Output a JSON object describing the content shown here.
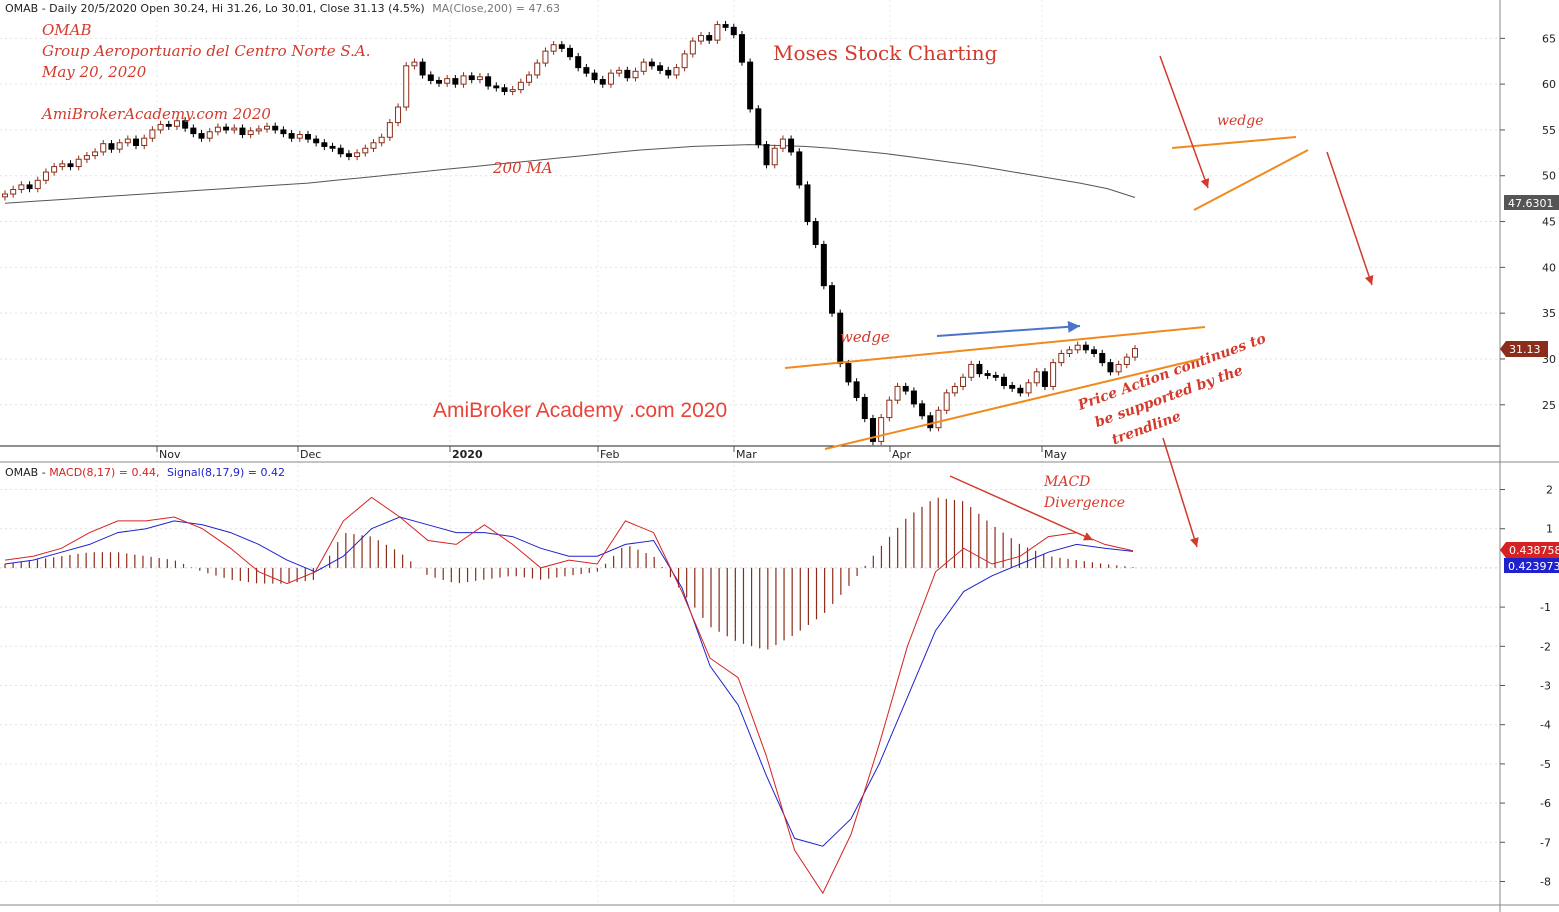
{
  "price_header": {
    "symbol": "OMAB",
    "text": "OMAB - Daily 20/5/2020 Open 30.24, Hi 31.26, Lo 30.01, Close 31.13 (4.5%)",
    "ma_text": "MA(Close,200) = 47.63"
  },
  "macd_header": {
    "prefix": "OMAB - ",
    "macd_text": "MACD(8,17) = 0.44,",
    "signal_text": "Signal(8,17,9) = 0.42"
  },
  "annotations": {
    "company_lines": [
      "OMAB",
      "Group Aeroportuario del Centro Norte S.A.",
      "May 20, 2020"
    ],
    "site_1": "AmiBrokerAcademy.com  2020",
    "ma_label": "200 MA",
    "moses": "Moses Stock Charting",
    "wedge_1": "wedge",
    "wedge_2": "wedge",
    "watermark": "AmiBroker Academy .com  2020",
    "price_action_lines": [
      "Price Action continues to",
      "be supported by the",
      "trendline"
    ],
    "macd_div_lines": [
      "MACD",
      "Divergence"
    ]
  },
  "value_labels": {
    "ma": "47.6301",
    "close": "31.13",
    "macd": "0.438758",
    "signal": "0.423973"
  },
  "colors": {
    "up_candle": "#8b2d1a",
    "down_candle": "#000000",
    "ma_line": "#555555",
    "macd_line": "#d62222",
    "signal_line": "#1f22cc",
    "histogram": "#8b2d1a",
    "annotation": "#d33a2c",
    "trend_orange": "#f08a1c",
    "blue_arrow": "#4a74c9"
  },
  "chart_data": [
    {
      "type": "candlestick",
      "title": "OMAB - Daily",
      "x_labels": [
        "Nov",
        "Dec",
        "2020",
        "Feb",
        "Mar",
        "Apr",
        "May"
      ],
      "y_ticks": [
        25,
        30,
        35,
        40,
        45,
        50,
        55,
        60,
        65
      ],
      "ylim": [
        20.5,
        67
      ],
      "grid": true,
      "close": [
        48.0,
        48.5,
        49.0,
        48.6,
        49.5,
        50.4,
        51.0,
        51.3,
        51.0,
        51.8,
        52.2,
        52.6,
        53.5,
        52.9,
        53.6,
        54.0,
        53.3,
        54.1,
        55.0,
        55.6,
        55.4,
        56.0,
        55.2,
        54.6,
        54.1,
        54.8,
        55.3,
        55.0,
        55.2,
        54.5,
        54.9,
        55.1,
        55.4,
        55.0,
        54.6,
        54.1,
        54.5,
        54.0,
        53.6,
        53.2,
        53.0,
        52.4,
        52.1,
        52.5,
        53.0,
        53.6,
        54.2,
        55.8,
        57.5,
        62.0,
        62.4,
        61.0,
        60.4,
        60.1,
        60.6,
        60.0,
        60.9,
        60.5,
        60.8,
        59.8,
        59.6,
        59.2,
        59.4,
        60.2,
        61.0,
        62.3,
        63.6,
        64.3,
        63.9,
        63.0,
        61.8,
        61.2,
        60.5,
        60.0,
        61.2,
        61.5,
        60.7,
        61.4,
        62.4,
        62.0,
        61.5,
        61.0,
        61.8,
        63.3,
        64.7,
        65.3,
        64.8,
        66.5,
        66.2,
        65.4,
        62.4,
        57.3,
        53.4,
        51.2,
        53.0,
        54.0,
        52.6,
        49.0,
        45.0,
        42.5,
        38.0,
        35.0,
        29.5,
        27.5,
        25.8,
        23.5,
        21.0,
        23.6,
        25.5,
        27.0,
        26.5,
        25.1,
        23.8,
        22.5,
        24.4,
        26.3,
        27.0,
        28.0,
        29.4,
        28.4,
        28.2,
        28.0,
        27.1,
        26.8,
        26.3,
        27.4,
        28.6,
        27.0,
        29.6,
        30.6,
        31.0,
        31.5,
        31.0,
        30.6,
        29.6,
        28.6,
        29.4,
        30.2,
        31.13
      ],
      "ma200": [
        47.0,
        47.2,
        47.4,
        47.6,
        47.8,
        48.0,
        48.2,
        48.4,
        48.6,
        48.8,
        49.0,
        49.2,
        49.5,
        49.8,
        50.1,
        50.4,
        50.7,
        51.0,
        51.3,
        51.6,
        51.9,
        52.2,
        52.5,
        52.8,
        53.0,
        53.2,
        53.3,
        53.4,
        53.3,
        53.2,
        53.0,
        52.7,
        52.4,
        52.0,
        51.6,
        51.2,
        50.7,
        50.2,
        49.7,
        49.2,
        48.6,
        47.63
      ]
    },
    {
      "type": "line",
      "title": "MACD(8,17)",
      "y_ticks": [
        -8,
        -7,
        -6,
        -5,
        -4,
        -3,
        -2,
        -1,
        1,
        2
      ],
      "ylim": [
        -8.6,
        2.6
      ],
      "series": [
        {
          "name": "MACD(8,17)",
          "values": [
            0.2,
            0.3,
            0.5,
            0.9,
            1.2,
            1.2,
            1.3,
            1.0,
            0.5,
            -0.1,
            -0.4,
            -0.1,
            1.2,
            1.8,
            1.3,
            0.7,
            0.6,
            1.1,
            0.6,
            0.0,
            0.2,
            0.1,
            1.2,
            0.9,
            -0.6,
            -2.3,
            -2.8,
            -4.8,
            -7.2,
            -8.3,
            -6.8,
            -4.5,
            -2.0,
            -0.1,
            0.5,
            0.1,
            0.3,
            0.8,
            0.9,
            0.6,
            0.44
          ]
        },
        {
          "name": "Signal(8,17,9)",
          "values": [
            0.1,
            0.2,
            0.4,
            0.6,
            0.9,
            1.0,
            1.2,
            1.1,
            0.9,
            0.6,
            0.2,
            -0.1,
            0.3,
            1.0,
            1.3,
            1.1,
            0.9,
            0.9,
            0.8,
            0.5,
            0.3,
            0.3,
            0.6,
            0.7,
            -0.5,
            -2.5,
            -3.5,
            -5.3,
            -6.9,
            -7.1,
            -6.4,
            -5.0,
            -3.3,
            -1.6,
            -0.6,
            -0.2,
            0.1,
            0.4,
            0.6,
            0.5,
            0.42
          ]
        },
        {
          "name": "Histogram",
          "values": [
            0.1,
            0.2,
            0.3,
            0.4,
            0.4,
            0.3,
            0.2,
            -0.1,
            -0.3,
            -0.4,
            -0.4,
            -0.3,
            0.9,
            0.8,
            0.4,
            -0.2,
            -0.4,
            -0.3,
            -0.2,
            -0.3,
            -0.2,
            -0.1,
            0.6,
            0.3,
            -0.6,
            -1.5,
            -1.9,
            -2.1,
            -1.7,
            -1.2,
            -0.4,
            0.5,
            1.3,
            1.8,
            1.7,
            1.1,
            0.6,
            0.3,
            0.2,
            0.1,
            0.02
          ]
        }
      ]
    }
  ]
}
